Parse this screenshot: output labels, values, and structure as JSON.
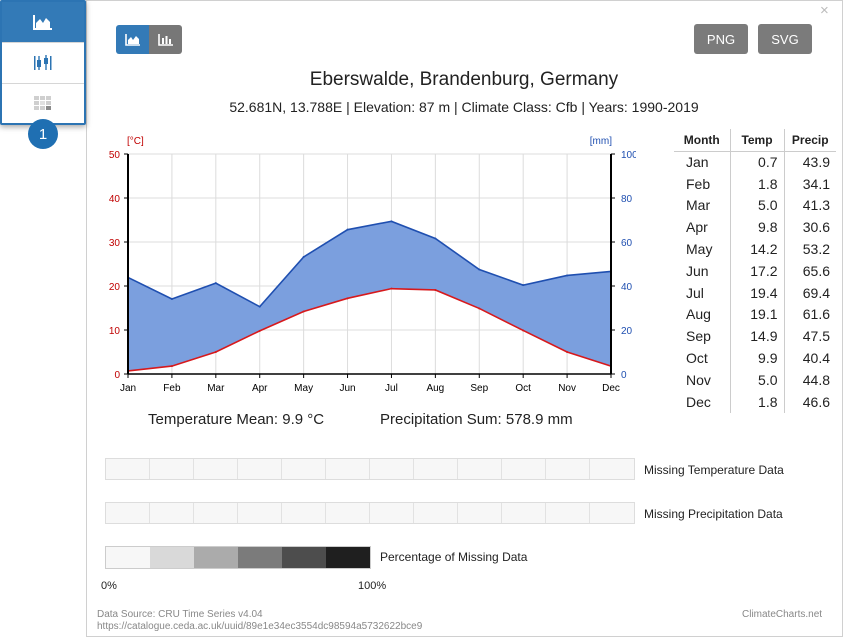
{
  "toolbar": {
    "badge_number": "1",
    "download_png": "PNG",
    "download_svg": "SVG",
    "close_symbol": "×"
  },
  "header": {
    "title": "Eberswalde, Brandenburg, Germany",
    "subtitle": "52.681N, 13.788E | Elevation: 87 m | Climate Class: Cfb | Years: 1990-2019"
  },
  "chart_data": {
    "type": "line",
    "categories": [
      "Jan",
      "Feb",
      "Mar",
      "Apr",
      "May",
      "Jun",
      "Jul",
      "Aug",
      "Sep",
      "Oct",
      "Nov",
      "Dec"
    ],
    "series": [
      {
        "name": "",
        "axis": "left",
        "values": [
          0.7,
          1.8,
          5.0,
          9.8,
          14.2,
          17.2,
          19.4,
          19.1,
          14.9,
          9.9,
          5.0,
          1.8
        ]
      },
      {
        "name": "",
        "axis": "right",
        "values": [
          43.9,
          34.1,
          41.3,
          30.6,
          53.2,
          65.6,
          69.4,
          61.6,
          47.5,
          40.4,
          44.8,
          46.6
        ]
      }
    ],
    "left_unit": "[°C]",
    "right_unit": "[mm]",
    "ylim_left": [
      0,
      50
    ],
    "ylim_right": [
      0,
      100
    ],
    "left_ticks": [
      0,
      10,
      20,
      30,
      40,
      50
    ],
    "right_ticks": [
      0,
      20,
      40,
      60,
      80,
      100
    ],
    "grid": true,
    "colors": {
      "temperature": "#d7191c",
      "precipitation": "#1f4fb0",
      "fill": "#7b9fde"
    }
  },
  "summary": {
    "temperature_mean": "Temperature Mean: 9.9 °C",
    "precipitation_sum": "Precipitation Sum: 578.9 mm"
  },
  "table": {
    "headers": [
      "Month",
      "Temp",
      "Precip"
    ],
    "rows": [
      [
        "Jan",
        "0.7",
        "43.9"
      ],
      [
        "Feb",
        "1.8",
        "34.1"
      ],
      [
        "Mar",
        "5.0",
        "41.3"
      ],
      [
        "Apr",
        "9.8",
        "30.6"
      ],
      [
        "May",
        "14.2",
        "53.2"
      ],
      [
        "Jun",
        "17.2",
        "65.6"
      ],
      [
        "Jul",
        "19.4",
        "69.4"
      ],
      [
        "Aug",
        "19.1",
        "61.6"
      ],
      [
        "Sep",
        "14.9",
        "47.5"
      ],
      [
        "Oct",
        "9.9",
        "40.4"
      ],
      [
        "Nov",
        "5.0",
        "44.8"
      ],
      [
        "Dec",
        "1.8",
        "46.6"
      ]
    ]
  },
  "missing": {
    "temperature_label": "Missing Temperature Data",
    "precipitation_label": "Missing Precipitation Data",
    "legend_label": "Percentage of Missing Data",
    "legend_min": "0%",
    "legend_max": "100%",
    "legend_colors": [
      "#f7f7f7",
      "#d9d9d9",
      "#ababab",
      "#7b7b7b",
      "#4d4d4d",
      "#1f1f1f"
    ]
  },
  "footer": {
    "source": "Data Source: CRU Time Series v4.04",
    "url": "https://catalogue.ceda.ac.uk/uuid/89e1e34ec3554dc98594a5732622bce9",
    "brand": "ClimateCharts.net"
  }
}
